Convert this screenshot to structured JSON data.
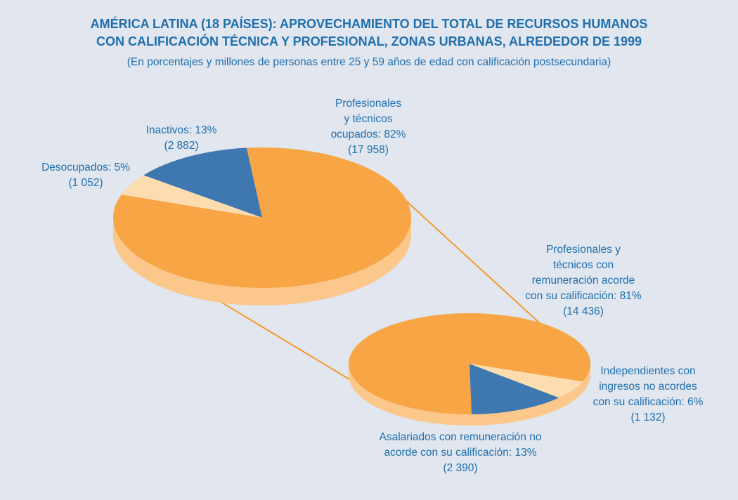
{
  "title": "AMÉRICA LATINA (18 PAÍSES): APROVECHAMIENTO DEL TOTAL DE RECURSOS HUMANOS\nCON CALIFICACIÓN TÉCNICA Y PROFESIONAL, ZONAS URBANAS, ALREDEDOR DE 1999",
  "subtitle": "(En porcentajes y millones de personas entre 25 y 59 años de edad con calificación postsecundaria)",
  "chart_data": [
    {
      "type": "pie",
      "labels": [
        "Profesionales\ny técnicos\nocupados: 82%",
        "Inactivos: 13%",
        "Desocupados: 5%"
      ],
      "values": [
        82,
        13,
        5
      ],
      "counts": [
        17958,
        2882,
        1052
      ],
      "count_labels": [
        "(17 958)",
        "(2 882)",
        "(1 052)"
      ],
      "colors": [
        "#f7a545",
        "#3f77b0",
        "#fddcb0"
      ]
    },
    {
      "type": "pie",
      "labels": [
        "Profesionales y\ntécnicos con\nremuneración acorde\ncon su calificación: 81%",
        "Asalariados con remuneración no\nacorde con su calificación: 13%",
        "Independientes con\ningresos no acordes\ncon su calificación: 6%"
      ],
      "values": [
        81,
        13,
        6
      ],
      "counts": [
        14436,
        2390,
        1132
      ],
      "count_labels": [
        "(14 436)",
        "(2 390)",
        "(1 132)"
      ],
      "colors": [
        "#f7a545",
        "#3f77b0",
        "#fddcb0"
      ]
    }
  ]
}
